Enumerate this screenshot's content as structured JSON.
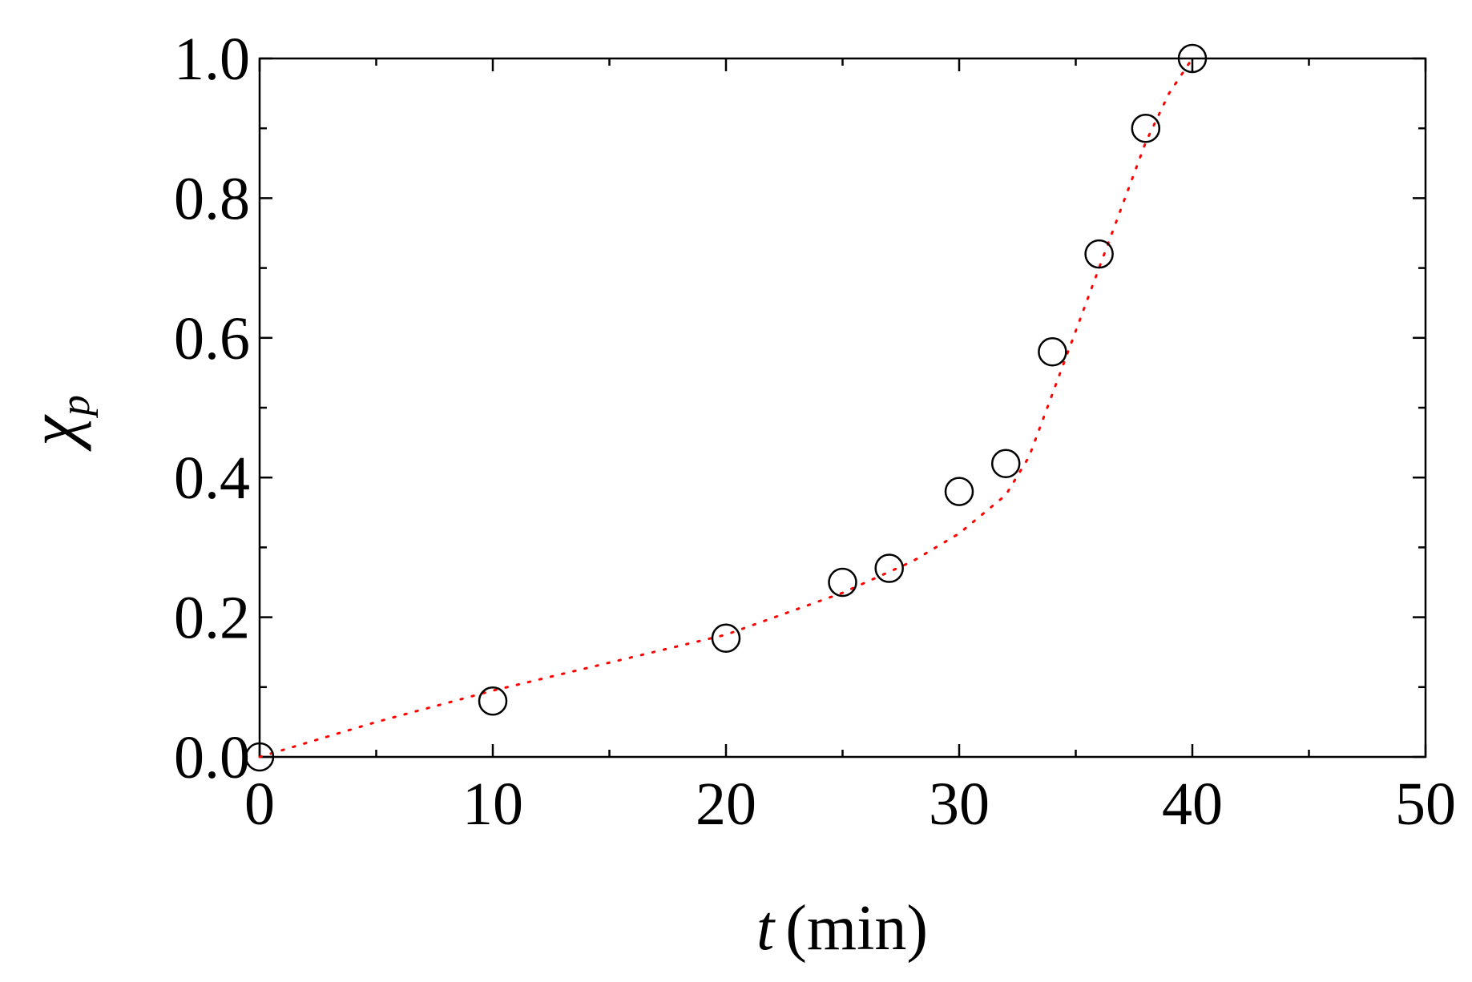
{
  "chart_data": {
    "type": "scatter",
    "title": "",
    "xlabel": {
      "symbol": "t",
      "unit": "(min)"
    },
    "ylabel": {
      "symbol": "χ",
      "subscript": "p"
    },
    "xlim": [
      0,
      50
    ],
    "ylim": [
      0,
      1.0
    ],
    "xticks": [
      "0",
      "10",
      "20",
      "30",
      "40",
      "50"
    ],
    "yticks": [
      "0.0",
      "0.2",
      "0.4",
      "0.6",
      "0.8",
      "1.0"
    ],
    "grid": false,
    "legend": "none",
    "series": [
      {
        "marker": "open-circle",
        "color": "#000000",
        "x": [
          0,
          10,
          20,
          25,
          27,
          30,
          32,
          34,
          36,
          38,
          40
        ],
        "y": [
          0.0,
          0.08,
          0.17,
          0.25,
          0.27,
          0.38,
          0.42,
          0.58,
          0.72,
          0.9,
          1.0
        ]
      },
      {
        "style": "dotted-fit",
        "color": "#ff0000",
        "x": [
          0,
          5,
          10,
          15,
          20,
          25,
          28,
          30,
          32,
          33,
          34,
          35,
          36,
          37,
          38,
          39,
          40
        ],
        "y": [
          0.0,
          0.05,
          0.095,
          0.135,
          0.175,
          0.235,
          0.28,
          0.32,
          0.375,
          0.43,
          0.52,
          0.61,
          0.7,
          0.79,
          0.88,
          0.95,
          1.0
        ]
      }
    ]
  }
}
